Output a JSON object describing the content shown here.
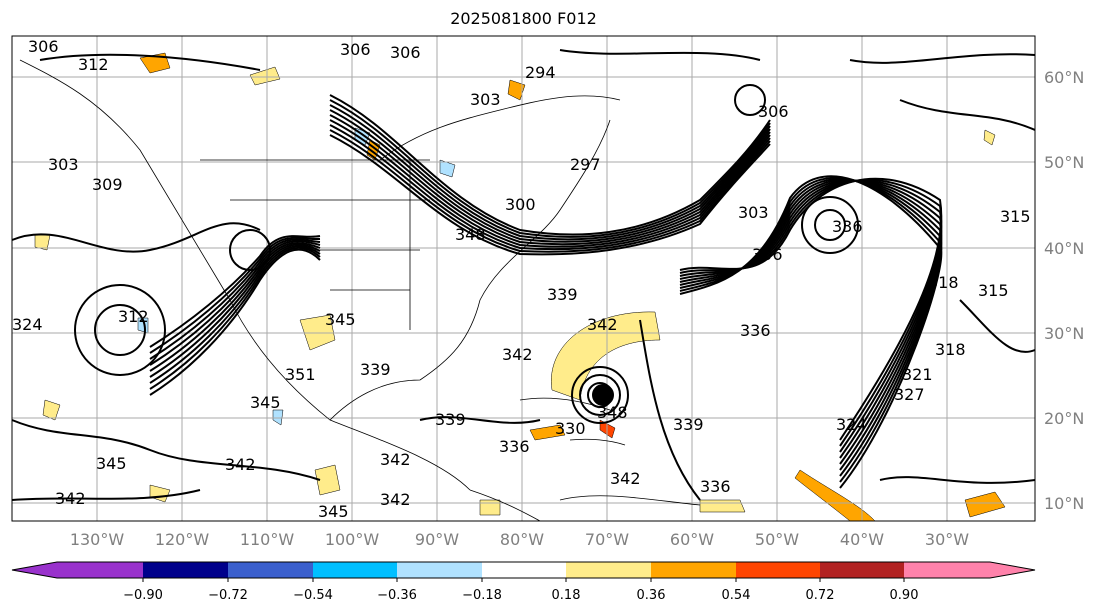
{
  "title": "2025081800 F012",
  "lon_labels": [
    "130°W",
    "120°W",
    "110°W",
    "100°W",
    "90°W",
    "80°W",
    "70°W",
    "60°W",
    "50°W",
    "40°W",
    "30°W"
  ],
  "lat_labels": [
    "60°N",
    "50°N",
    "40°N",
    "30°N",
    "20°N",
    "10°N"
  ],
  "contour_labels": [
    "306",
    "312",
    "303",
    "309",
    "306",
    "306",
    "294",
    "303",
    "297",
    "300",
    "306",
    "303",
    "315",
    "336",
    "306",
    "318",
    "315",
    "324",
    "318",
    "321",
    "312",
    "345",
    "348",
    "339",
    "342",
    "351",
    "339",
    "342",
    "348",
    "342",
    "339",
    "336",
    "330",
    "342",
    "336",
    "339",
    "342",
    "345",
    "345",
    "342",
    "336",
    "324",
    "327",
    "345",
    "342"
  ],
  "colorbar": {
    "ticks": [
      "−0.90",
      "−0.72",
      "−0.54",
      "−0.36",
      "−0.18",
      "0.18",
      "0.36",
      "0.54",
      "0.72",
      "0.90"
    ],
    "colors": [
      "#9932cc",
      "#00008b",
      "#3a5fcd",
      "#00bfff",
      "#b0e2ff",
      "#ffffff",
      "#ffec8b",
      "#ffa500",
      "#ff4500",
      "#b22222",
      "#ff82ab"
    ]
  }
}
